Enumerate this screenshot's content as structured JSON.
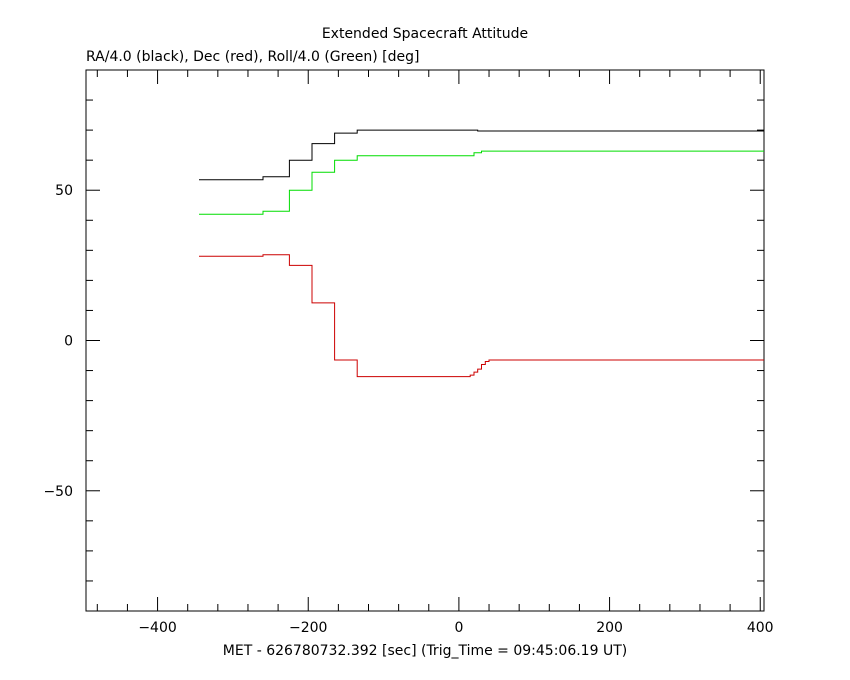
{
  "chart_data": {
    "type": "line",
    "title": "Extended Spacecraft Attitude",
    "subtitle": "RA/4.0 (black), Dec (red), Roll/4.0 (Green) [deg]",
    "xlabel": "MET - 626780732.392 [sec] (Trig_Time = 09:45:06.19 UT)",
    "ylabel": "",
    "xlim": [
      -495,
      405
    ],
    "ylim": [
      -90,
      90
    ],
    "x_ticks": [
      -400,
      -200,
      0,
      200,
      400
    ],
    "y_ticks": [
      -50,
      0,
      50
    ],
    "x_tick_labels": [
      "−400",
      "−200",
      "0",
      "200",
      "400"
    ],
    "y_tick_labels": [
      "−50",
      "0",
      "50"
    ],
    "grid": false,
    "series": [
      {
        "color": "#000000",
        "step": true,
        "x": [
          -345,
          -260,
          -225,
          -195,
          -165,
          -135,
          25,
          405
        ],
        "y": [
          53.5,
          54.5,
          60,
          65.5,
          69,
          70,
          69.7,
          69.7
        ]
      },
      {
        "color": "#00dd00",
        "step": true,
        "x": [
          -345,
          -260,
          -225,
          -195,
          -165,
          -135,
          20,
          30,
          405
        ],
        "y": [
          42,
          43,
          50,
          56,
          60,
          61.5,
          62.5,
          63,
          63
        ]
      },
      {
        "color": "#cc0000",
        "step": true,
        "x": [
          -345,
          -260,
          -225,
          -195,
          -165,
          -135,
          15,
          20,
          25,
          30,
          35,
          40,
          405
        ],
        "y": [
          28,
          28.5,
          25,
          12.5,
          -6.5,
          -12,
          -11.5,
          -10.5,
          -9.5,
          -8,
          -7,
          -6.5,
          -6.5
        ]
      }
    ]
  }
}
